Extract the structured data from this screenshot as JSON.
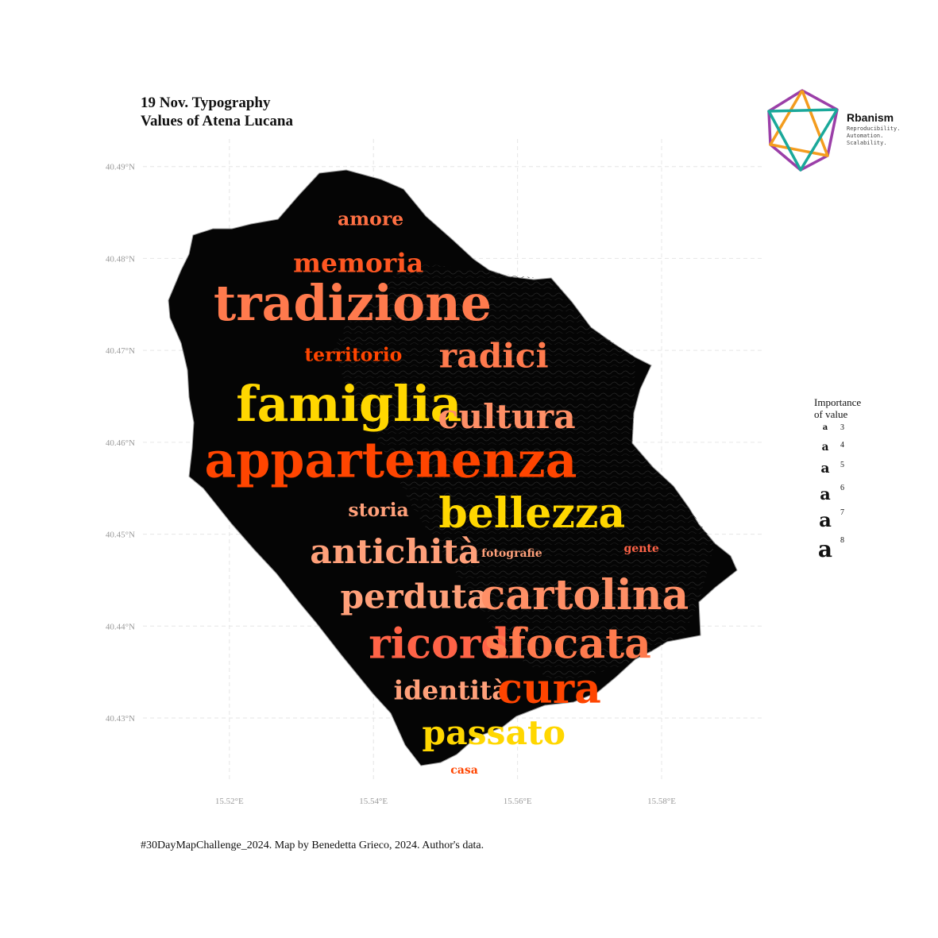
{
  "title": {
    "line1": "19 Nov. Typography",
    "line2": "Values of Atena Lucana"
  },
  "caption": "#30DayMapChallenge_2024. Map by Benedetta Grieco, 2024. Author's data.",
  "logo": {
    "name": "Rbanism",
    "tagline": [
      "Reproducibility.",
      "Automation.",
      "Scalability."
    ],
    "colors": [
      "#9b3fa8",
      "#f39c1e",
      "#1aa89a"
    ]
  },
  "axes": {
    "lat_ticks": [
      "40.49°N",
      "40.48°N",
      "40.47°N",
      "40.46°N",
      "40.45°N",
      "40.44°N",
      "40.43°N"
    ],
    "lon_ticks": [
      "15.52°E",
      "15.54°E",
      "15.56°E",
      "15.58°E"
    ]
  },
  "chart_data": {
    "type": "map",
    "region": "Atena Lucana",
    "grid": true,
    "legend_placement": "right",
    "size_scale": {
      "min": 3,
      "max": 8
    },
    "lat_range": [
      40.423,
      40.493
    ],
    "lon_range": [
      15.508,
      15.594
    ],
    "words": [
      {
        "text": "amore",
        "importance": 4,
        "color": "#ff7043",
        "lon": 15.5396,
        "lat": 40.4842
      },
      {
        "text": "memoria",
        "importance": 5,
        "color": "#ff5722",
        "lon": 15.5379,
        "lat": 40.4793
      },
      {
        "text": "tradizione",
        "importance": 8,
        "color": "#ff7a4d",
        "lon": 15.5371,
        "lat": 40.4747
      },
      {
        "text": "territorio",
        "importance": 4,
        "color": "#ff4500",
        "lon": 15.5372,
        "lat": 40.4694
      },
      {
        "text": "radici",
        "importance": 6,
        "color": "#ff7a4d",
        "lon": 15.5567,
        "lat": 40.4691
      },
      {
        "text": "famiglia",
        "importance": 8,
        "color": "#ffd700",
        "lon": 15.5366,
        "lat": 40.4637
      },
      {
        "text": "cultura",
        "importance": 6,
        "color": "#ff8f66",
        "lon": 15.5585,
        "lat": 40.4625
      },
      {
        "text": "appartenenza",
        "importance": 8,
        "color": "#ff4500",
        "lon": 15.5424,
        "lat": 40.4576
      },
      {
        "text": "storia",
        "importance": 4,
        "color": "#ffa07a",
        "lon": 15.5407,
        "lat": 40.4525
      },
      {
        "text": "bellezza",
        "importance": 7,
        "color": "#ffd700",
        "lon": 15.562,
        "lat": 40.4519
      },
      {
        "text": "antichità",
        "importance": 6,
        "color": "#ffa07a",
        "lon": 15.543,
        "lat": 40.4478
      },
      {
        "text": "fotografie",
        "importance": 3,
        "color": "#ffa07a",
        "lon": 15.5592,
        "lat": 40.4479
      },
      {
        "text": "gente",
        "importance": 3,
        "color": "#ff6347",
        "lon": 15.5772,
        "lat": 40.4484
      },
      {
        "text": "perduta",
        "importance": 6,
        "color": "#ffa07a",
        "lon": 15.5457,
        "lat": 40.4429
      },
      {
        "text": "cartolina",
        "importance": 7,
        "color": "#ff8f66",
        "lon": 15.5693,
        "lat": 40.443
      },
      {
        "text": "ricordi",
        "importance": 7,
        "color": "#ff6347",
        "lon": 15.5502,
        "lat": 40.4377
      },
      {
        "text": "sfocata",
        "importance": 7,
        "color": "#ff7a4d",
        "lon": 15.567,
        "lat": 40.4377
      },
      {
        "text": "identità",
        "importance": 5,
        "color": "#ffa07a",
        "lon": 15.5508,
        "lat": 40.4328
      },
      {
        "text": "cura",
        "importance": 7,
        "color": "#ff4500",
        "lon": 15.5644,
        "lat": 40.4328
      },
      {
        "text": "passato",
        "importance": 6,
        "color": "#ffd700",
        "lon": 15.5567,
        "lat": 40.4281
      },
      {
        "text": "casa",
        "importance": 3,
        "color": "#ff4500",
        "lon": 15.5526,
        "lat": 40.4243
      }
    ]
  },
  "legend": {
    "title_line1": "Importance",
    "title_line2": "of value",
    "glyph": "a",
    "values": [
      "3",
      "4",
      "5",
      "6",
      "7",
      "8"
    ]
  }
}
